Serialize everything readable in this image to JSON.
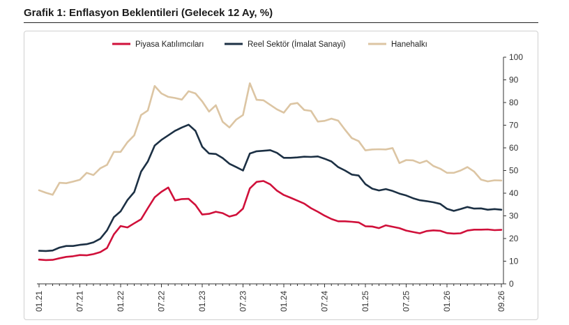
{
  "header": {
    "title": "Grafik 1: Enflasyon Beklentileri (Gelecek 12 Ay, %)"
  },
  "chart_data": {
    "type": "line",
    "title": "Grafik 1: Enflasyon Beklentileri (Gelecek 12 Ay, %)",
    "xlabel": "",
    "ylabel": "",
    "ylim": [
      0,
      100
    ],
    "yticks": [
      0,
      10,
      20,
      30,
      40,
      50,
      60,
      70,
      80,
      90,
      100
    ],
    "y_axis_position": "right",
    "legend_position": "top-center",
    "grid": false,
    "x": [
      "01.21",
      "02.21",
      "03.21",
      "04.21",
      "05.21",
      "06.21",
      "07.21",
      "08.21",
      "09.21",
      "10.21",
      "11.21",
      "12.21",
      "01.22",
      "02.22",
      "03.22",
      "04.22",
      "05.22",
      "06.22",
      "07.22",
      "08.22",
      "09.22",
      "10.22",
      "11.22",
      "12.22",
      "01.23",
      "02.23",
      "03.23",
      "04.23",
      "05.23",
      "06.23",
      "07.23",
      "08.23",
      "09.23",
      "10.23",
      "11.23",
      "12.23",
      "01.24",
      "02.24",
      "03.24",
      "04.24",
      "05.24",
      "06.24",
      "07.24",
      "08.24",
      "09.24",
      "10.24",
      "11.24",
      "12.24",
      "01.25",
      "02.25",
      "03.25",
      "04.25",
      "05.25",
      "06.25",
      "07.25",
      "08.25",
      "09.25",
      "10.25",
      "11.25",
      "12.25",
      "01.26",
      "02.26",
      "03.26",
      "04.26",
      "05.26",
      "06.26",
      "07.26",
      "08.26",
      "09.26"
    ],
    "xtick_labels": [
      "01.21",
      "07.21",
      "01.22",
      "07.22",
      "01.23",
      "07.23",
      "01.24",
      "07.24",
      "01.25",
      "07.25",
      "01.26",
      "09.26"
    ],
    "series": [
      {
        "name": "Piyasa Katılımcıları",
        "color": "#d0103a",
        "values": [
          10.7,
          10.5,
          10.6,
          11.3,
          11.9,
          12.2,
          12.7,
          12.6,
          13.1,
          14.0,
          15.8,
          21.8,
          25.5,
          24.9,
          26.7,
          28.5,
          33.4,
          38.2,
          40.6,
          42.5,
          36.8,
          37.4,
          37.5,
          34.8,
          30.6,
          30.9,
          31.8,
          31.2,
          29.7,
          30.5,
          33.2,
          42.1,
          45.0,
          45.4,
          43.9,
          41.1,
          39.2,
          38.0,
          36.7,
          35.4,
          33.4,
          31.8,
          30.1,
          28.6,
          27.6,
          27.6,
          27.4,
          27.1,
          25.4,
          25.3,
          24.6,
          25.8,
          25.2,
          24.6,
          23.5,
          22.9,
          22.3,
          23.3,
          23.6,
          23.4,
          22.4,
          22.2,
          22.3,
          23.5,
          23.9,
          23.9,
          24.0,
          23.7,
          23.8
        ]
      },
      {
        "name": "Reel Sektör (İmalat Sanayi)",
        "color": "#1c3044",
        "values": [
          14.6,
          14.5,
          14.7,
          16.0,
          16.7,
          16.7,
          17.2,
          17.5,
          18.3,
          19.9,
          23.6,
          29.4,
          32.0,
          37.0,
          40.5,
          49.5,
          54.0,
          61.0,
          63.5,
          65.5,
          67.5,
          69.0,
          70.2,
          67.5,
          60.5,
          57.5,
          57.3,
          55.5,
          53.0,
          51.5,
          50.0,
          57.5,
          58.5,
          58.7,
          59.0,
          57.8,
          55.6,
          55.6,
          55.8,
          56.1,
          56.0,
          56.2,
          55.2,
          54.0,
          51.5,
          50.0,
          48.2,
          47.8,
          44.0,
          42.0,
          41.2,
          41.8,
          41.0,
          39.8,
          39.0,
          37.8,
          36.9,
          36.5,
          36.0,
          35.3,
          33.1,
          32.2,
          33.0,
          33.9,
          33.2,
          33.3,
          32.7,
          33.0,
          32.7
        ]
      },
      {
        "name": "Hanehalkı",
        "color": "#dcc5a3",
        "values": [
          41.3,
          40.2,
          39.3,
          44.6,
          44.4,
          45.1,
          45.9,
          49.0,
          48.0,
          51.0,
          52.5,
          58.2,
          58.2,
          62.5,
          65.5,
          74.5,
          76.5,
          87.3,
          84.0,
          82.5,
          82.0,
          81.3,
          85.0,
          84.0,
          80.5,
          76.0,
          78.8,
          71.5,
          69.0,
          72.5,
          74.5,
          88.5,
          81.2,
          81.0,
          79.0,
          77.0,
          75.5,
          79.3,
          79.8,
          76.7,
          76.3,
          71.6,
          71.9,
          72.9,
          72.0,
          68.0,
          64.3,
          63.0,
          58.9,
          59.3,
          59.4,
          59.3,
          59.9,
          53.3,
          54.6,
          54.5,
          53.3,
          54.3,
          52.0,
          50.8,
          49.0,
          49.0,
          50.0,
          51.5,
          49.5,
          46.0,
          45.2,
          45.7,
          45.6
        ]
      }
    ]
  }
}
